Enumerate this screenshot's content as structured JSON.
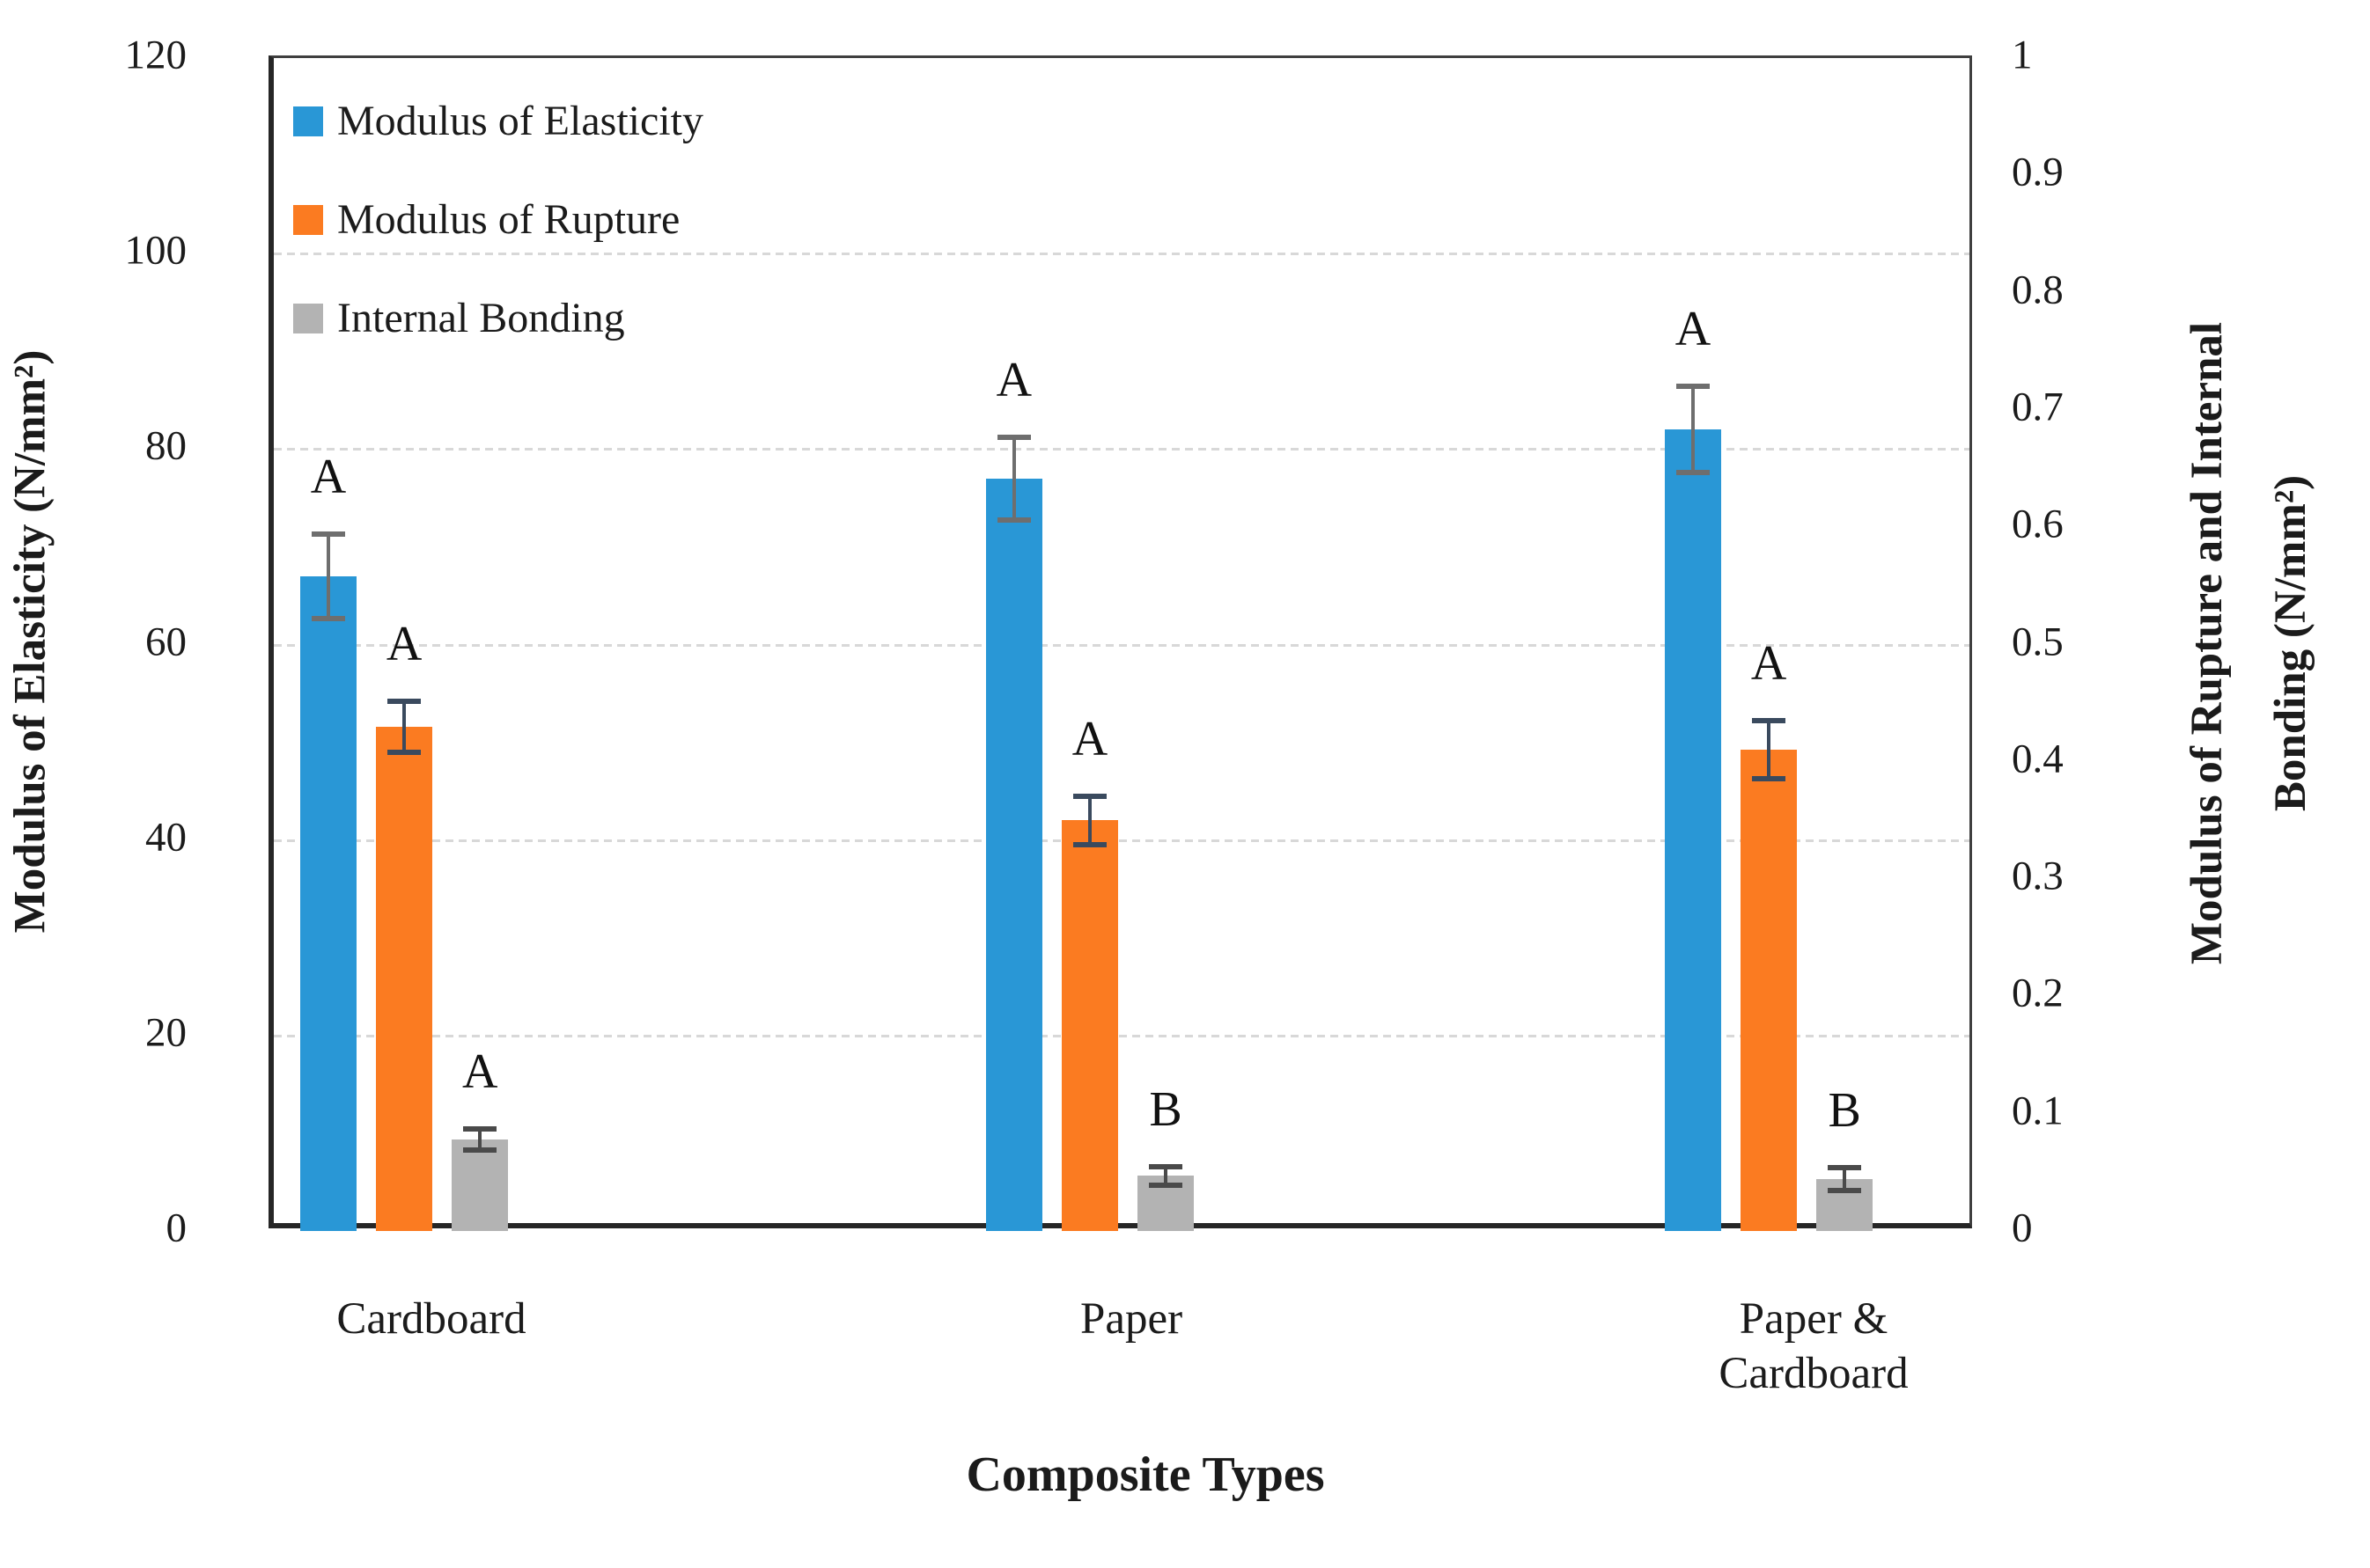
{
  "figure": {
    "x_axis_title": "Composite Types",
    "left_axis_title": "Modulus of Elasticity (N/mm²)",
    "right_axis_title_line1": "Modulus of Rupture and Internal",
    "right_axis_title_line2": "Bonding (N/mm²)"
  },
  "legend": {
    "items": [
      {
        "label": "Modulus of Elasticity",
        "color": "#2997d6"
      },
      {
        "label": "Modulus of Rupture",
        "color": "#fb7b21"
      },
      {
        "label": "Internal Bonding",
        "color": "#b3b3b3"
      }
    ]
  },
  "chart_data": {
    "type": "bar",
    "title": "",
    "categories": [
      "Cardboard",
      "Paper",
      "Paper & Cardboard"
    ],
    "xlabel": "Composite Types",
    "left_ylabel": "Modulus of Elasticity (N/mm²)",
    "right_ylabel": "Modulus of Rupture and Internal Bonding (N/mm²)",
    "left_ylim": [
      0,
      120
    ],
    "left_step": 20,
    "right_ylim": [
      0,
      1
    ],
    "right_step": 0.1,
    "grid": true,
    "legend_position": "inside-top-left",
    "series": [
      {
        "name": "Modulus of Elasticity",
        "axis": "left",
        "color": "#2997d6",
        "error_color": "#6e6e6e",
        "values": [
          67,
          77,
          82
        ],
        "error_bars": [
          4.6,
          4.5,
          4.7
        ],
        "significance_letters": [
          "A",
          "A",
          "A"
        ]
      },
      {
        "name": "Modulus of Rupture",
        "axis": "right",
        "color": "#fb7b21",
        "error_color": "#3a4a5e",
        "values": [
          0.43,
          0.35,
          0.41
        ],
        "error_bars": [
          0.024,
          0.023,
          0.027
        ],
        "significance_letters": [
          "A",
          "A",
          "A"
        ]
      },
      {
        "name": "Internal Bonding",
        "axis": "right",
        "color": "#b3b3b3",
        "error_color": "#4a4a4a",
        "values": [
          0.078,
          0.047,
          0.044
        ],
        "error_bars": [
          0.011,
          0.01,
          0.012
        ],
        "significance_letters": [
          "A",
          "B",
          "B"
        ]
      }
    ]
  }
}
